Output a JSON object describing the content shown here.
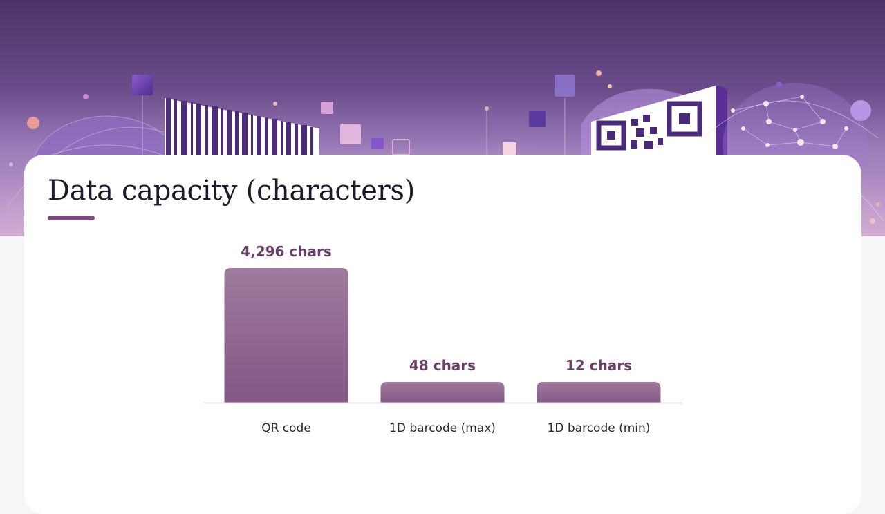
{
  "header": {
    "title": "Data capacity (characters)"
  },
  "colors": {
    "accent": "#7a4d7c",
    "bar_top": "#9e7b9c",
    "bar_bottom": "#835686",
    "value_label": "#6b3f6a"
  },
  "chart_data": {
    "type": "bar",
    "title": "Data capacity (characters)",
    "categories": [
      "QR code",
      "1D barcode (max)",
      "1D barcode (min)"
    ],
    "values": [
      4296,
      48,
      12
    ],
    "value_labels": [
      "4,296 chars",
      "48 chars",
      "12 chars"
    ],
    "xlabel": "",
    "ylabel": "",
    "scale": "non-linear (small bars shown at a minimum visible height)",
    "grid": false,
    "legend": "none"
  }
}
